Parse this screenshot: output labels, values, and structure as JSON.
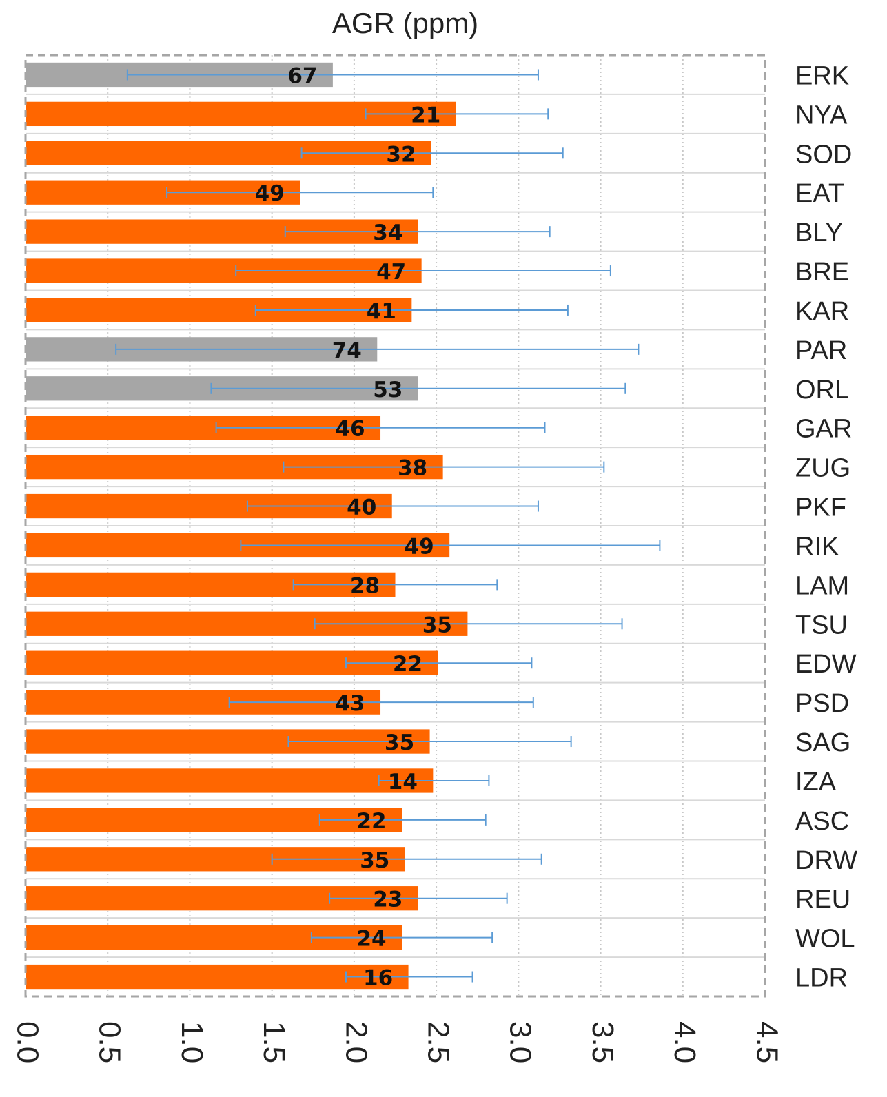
{
  "chart_data": {
    "type": "bar",
    "orientation": "horizontal",
    "title": "AGR (ppm)",
    "xlabel": "",
    "ylabel": "",
    "xlim": [
      0,
      4.5
    ],
    "xticks": [
      "0.0",
      "0.5",
      "1.0",
      "1.5",
      "2.0",
      "2.5",
      "3.0",
      "3.5",
      "4.0",
      "4.5"
    ],
    "categories": [
      "ERK",
      "NYA",
      "SOD",
      "EAT",
      "BLY",
      "BRE",
      "KAR",
      "PAR",
      "ORL",
      "GAR",
      "ZUG",
      "PKF",
      "RIK",
      "LAM",
      "TSU",
      "EDW",
      "PSD",
      "SAG",
      "IZA",
      "ASC",
      "DRW",
      "REU",
      "WOL",
      "LDR"
    ],
    "values": [
      1.87,
      2.62,
      2.47,
      1.67,
      2.39,
      2.41,
      2.35,
      2.14,
      2.39,
      2.16,
      2.54,
      2.23,
      2.58,
      2.25,
      2.69,
      2.51,
      2.16,
      2.46,
      2.48,
      2.29,
      2.31,
      2.39,
      2.29,
      2.33
    ],
    "error_low": [
      0.62,
      2.07,
      1.68,
      0.86,
      1.58,
      1.28,
      1.4,
      0.55,
      1.13,
      1.16,
      1.57,
      1.35,
      1.31,
      1.63,
      1.76,
      1.95,
      1.24,
      1.6,
      2.15,
      1.79,
      1.5,
      1.85,
      1.74,
      1.95
    ],
    "error_high": [
      3.12,
      3.18,
      3.27,
      2.48,
      3.19,
      3.56,
      3.3,
      3.73,
      3.65,
      3.16,
      3.52,
      3.12,
      3.86,
      2.87,
      3.63,
      3.08,
      3.09,
      3.32,
      2.82,
      2.8,
      3.14,
      2.93,
      2.84,
      2.72
    ],
    "data_labels": [
      "67",
      "21",
      "32",
      "49",
      "34",
      "47",
      "41",
      "74",
      "53",
      "46",
      "38",
      "40",
      "49",
      "28",
      "35",
      "22",
      "43",
      "35",
      "14",
      "22",
      "35",
      "23",
      "24",
      "16"
    ],
    "bar_colors": [
      "#a6a6a6",
      "#ff6600",
      "#ff6600",
      "#ff6600",
      "#ff6600",
      "#ff6600",
      "#ff6600",
      "#a6a6a6",
      "#a6a6a6",
      "#ff6600",
      "#ff6600",
      "#ff6600",
      "#ff6600",
      "#ff6600",
      "#ff6600",
      "#ff6600",
      "#ff6600",
      "#ff6600",
      "#ff6600",
      "#ff6600",
      "#ff6600",
      "#ff6600",
      "#ff6600",
      "#ff6600"
    ],
    "error_bar_color": "#5b9bd5",
    "grid": true,
    "tick_rotation": 90
  }
}
